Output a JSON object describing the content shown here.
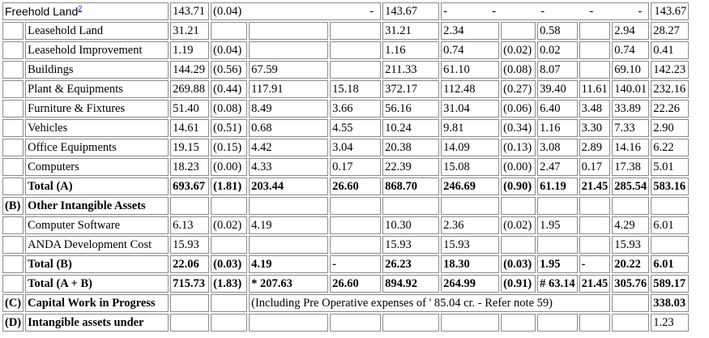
{
  "rows": [
    {
      "label": "Freehold Land",
      "sup": "2",
      "c": [
        "143.71",
        "(0.04)",
        "",
        "-",
        "143.67",
        "-",
        "-",
        "-",
        "-",
        "-",
        "143.67"
      ]
    },
    {
      "label": "Leasehold Land",
      "c": [
        "31.21",
        "",
        "",
        "",
        "31.21",
        "2.34",
        "",
        "0.58",
        "",
        "2.94",
        "28.27"
      ]
    },
    {
      "label": "Leasehold Improvement",
      "c": [
        "1.19",
        "(0.04)",
        "",
        "",
        "1.16",
        "0.74",
        "(0.02)",
        "0.02",
        "",
        "0.74",
        "0.41"
      ]
    },
    {
      "label": "Buildings",
      "c": [
        "144.29",
        "(0.56)",
        "67.59",
        "",
        "211.33",
        "61.10",
        "(0.08)",
        "8.07",
        "",
        "69.10",
        "142.23"
      ]
    },
    {
      "label": "Plant & Equipments",
      "c": [
        "269.88",
        "(0.44)",
        "117.91",
        "15.18",
        "372.17",
        "112.48",
        "(0.27)",
        "39.40",
        "11.61",
        "140.01",
        "232.16"
      ]
    },
    {
      "label": "Furniture & Fixtures",
      "c": [
        "51.40",
        "(0.08)",
        "8.49",
        "3.66",
        "56.16",
        "31.04",
        "(0.06)",
        "6.40",
        "3.48",
        "33.89",
        "22.26"
      ]
    },
    {
      "label": "Vehicles",
      "c": [
        "14.61",
        "(0.51)",
        "0.68",
        "4.55",
        "10.24",
        "9.81",
        "(0.34)",
        "1.16",
        "3.30",
        "7.33",
        "2.90"
      ]
    },
    {
      "label": "Office Equipments",
      "c": [
        "19.15",
        "(0.15)",
        "4.42",
        "3.04",
        "20.38",
        "14.09",
        "(0.13)",
        "3.08",
        "2.89",
        "14.16",
        "6.22"
      ]
    },
    {
      "label": "Computers",
      "c": [
        "18.23",
        "(0.00)",
        "4.33",
        "0.17",
        "22.39",
        "15.08",
        "(0.00)",
        "2.47",
        "0.17",
        "17.38",
        "5.01"
      ]
    },
    {
      "label": "Total (A)",
      "c": [
        "693.67",
        "(1.81)",
        "203.44",
        "26.60",
        "868.70",
        "246.69",
        "(0.90)",
        "61.19",
        "21.45",
        "285.54",
        "583.16"
      ]
    },
    {
      "section": "(B)",
      "label": "Other Intangible Assets"
    },
    {
      "label": "Computer Software",
      "c": [
        "6.13",
        "(0.02)",
        "4.19",
        "",
        "10.30",
        "2.36",
        "(0.02)",
        "1.95",
        "",
        "4.29",
        "6.01"
      ]
    },
    {
      "label": "ANDA Development Cost",
      "c": [
        "15.93",
        "",
        "",
        "",
        "15.93",
        "15.93",
        "",
        "",
        "",
        "15.93",
        ""
      ]
    },
    {
      "label": "Total (B)",
      "c": [
        "22.06",
        "(0.03)",
        "4.19",
        "-",
        "26.23",
        "18.30",
        "(0.03)",
        "1.95",
        "-",
        "20.22",
        "6.01"
      ]
    },
    {
      "label": "Total (A + B)",
      "c": [
        "715.73",
        "(1.83)",
        "* 207.63",
        "26.60",
        "894.92",
        "264.99",
        "(0.91)",
        "# 63.14",
        "21.45",
        "305.76",
        "589.17"
      ]
    },
    {
      "section": "(C)",
      "label": "Capital Work in Progress",
      "note": "(Including Pre Operative expenses of ' 85.04 cr. - Refer note 59)",
      "last": "338.03"
    },
    {
      "section": "(D)",
      "label": "Intangible assets under",
      "last": "1.23"
    }
  ]
}
